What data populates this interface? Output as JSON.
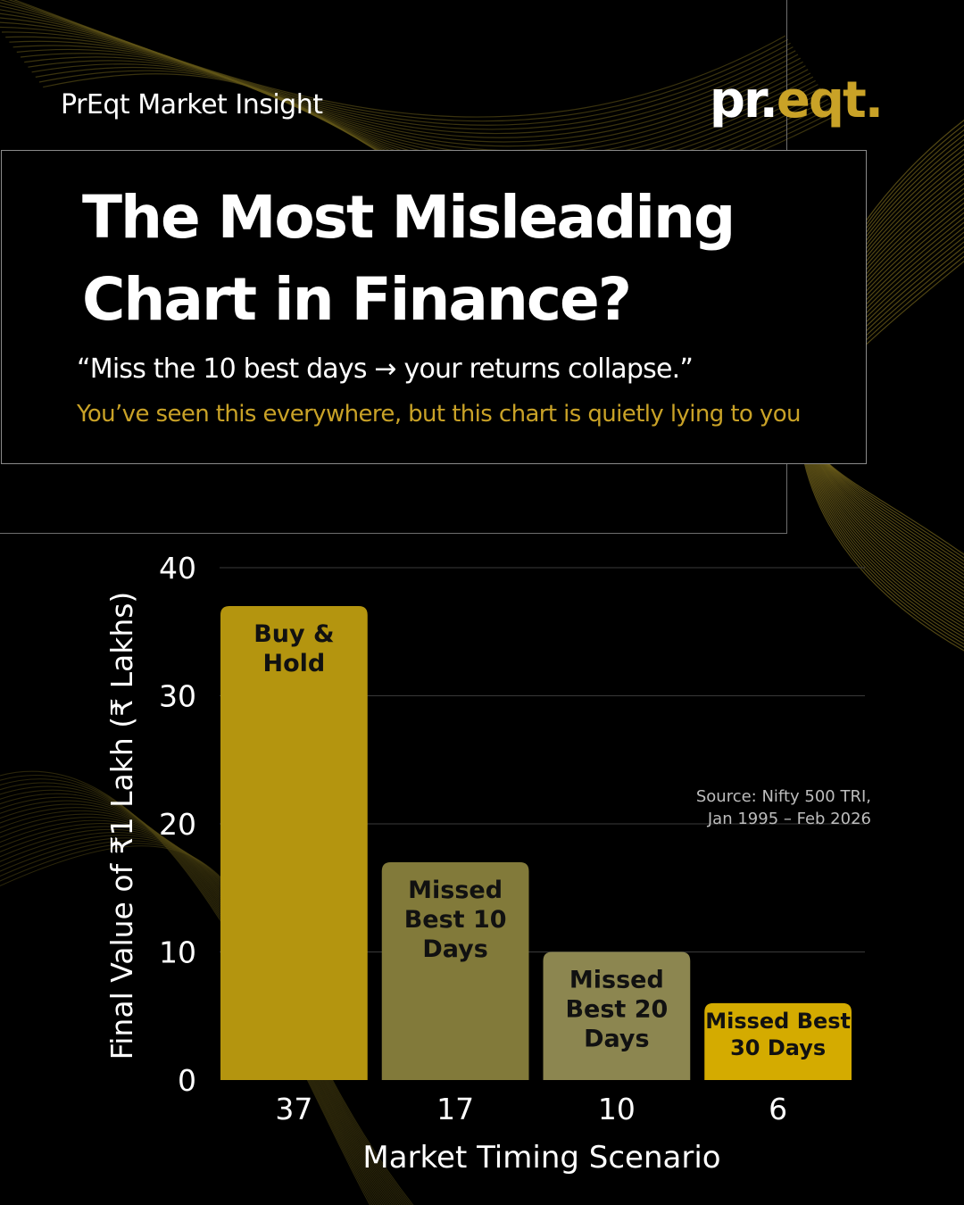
{
  "header": {
    "brand_label": "PrEqt Market Insight",
    "logo_part1": "pr.",
    "logo_part2": "eqt.",
    "title": "The Most Misleading Chart in Finance?",
    "quote": "“Miss the 10 best days → your returns collapse.”",
    "tagline": "You’ve seen this everywhere, but this chart is quietly lying to you"
  },
  "source": {
    "line1": "Source: Nifty 500 TRI,",
    "line2": "Jan 1995 – Feb 2026"
  },
  "colors": {
    "background": "#000000",
    "accent_gold": "#c9a227",
    "bar_colors": [
      "#b4950f",
      "#827a3a",
      "#8c8650",
      "#d4ab00"
    ]
  },
  "chart_data": {
    "type": "bar",
    "categories": [
      "37",
      "17",
      "10",
      "6"
    ],
    "bar_labels": [
      [
        "Buy &",
        "Hold"
      ],
      [
        "Missed",
        "Best 10",
        "Days"
      ],
      [
        "Missed",
        "Best 20",
        "Days"
      ],
      [
        "Missed Best",
        "30 Days"
      ]
    ],
    "values": [
      37,
      17,
      10,
      6
    ],
    "xlabel": "Market Timing Scenario",
    "ylabel": "Final Value of ₹1 Lakh (₹ Lakhs)",
    "ylim": [
      0,
      40
    ],
    "yticks": [
      "0",
      "10",
      "20",
      "30",
      "40"
    ],
    "grid": true
  }
}
